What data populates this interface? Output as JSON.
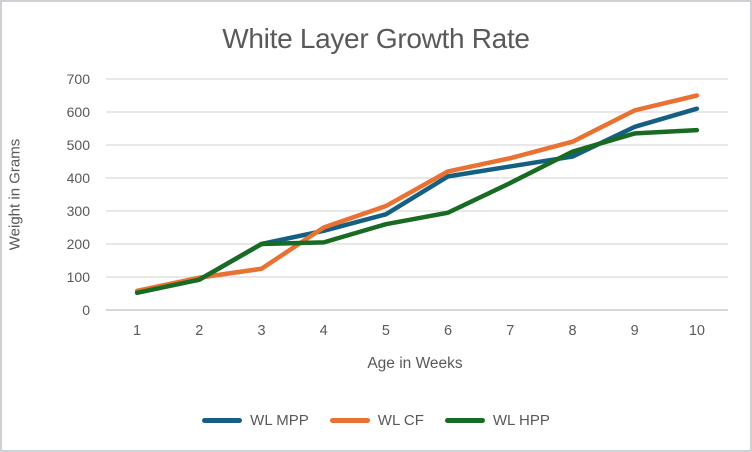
{
  "chart_data": {
    "type": "line",
    "title": "White Layer Growth Rate",
    "xlabel": "Age in Weeks",
    "ylabel": "Weight in Grams",
    "categories": [
      "1",
      "2",
      "3",
      "4",
      "5",
      "6",
      "7",
      "8",
      "9",
      "10"
    ],
    "yticks": [
      0,
      100,
      200,
      300,
      400,
      500,
      600,
      700
    ],
    "ylim": [
      0,
      700
    ],
    "grid": true,
    "legend_position": "bottom",
    "series": [
      {
        "name": "WL MPP",
        "color": "#156082",
        "values": [
          55,
          92,
          200,
          240,
          290,
          405,
          435,
          465,
          555,
          610
        ]
      },
      {
        "name": "WL CF",
        "color": "#E97132",
        "values": [
          58,
          98,
          125,
          250,
          315,
          420,
          460,
          510,
          605,
          650
        ]
      },
      {
        "name": "WL HPP",
        "color": "#196B24",
        "values": [
          52,
          92,
          200,
          205,
          260,
          295,
          385,
          480,
          535,
          545
        ]
      }
    ],
    "colors": {
      "text": "#595959",
      "gridline": "#D9D9D9",
      "axis_line": "#BFBFBF",
      "frame_border": "#CDD1D5"
    }
  }
}
